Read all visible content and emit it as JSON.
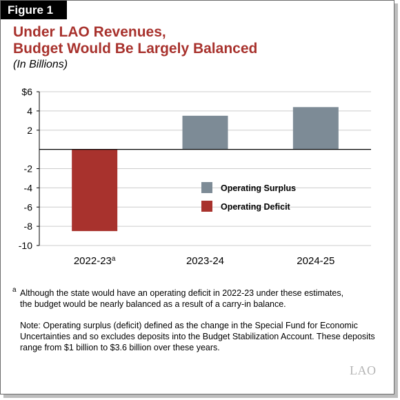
{
  "figure_label": "Figure 1",
  "title_lines": [
    "Under LAO Revenues,",
    "Budget Would Be Largely Balanced"
  ],
  "subtitle": "(In Billions)",
  "footnote": {
    "marker": "a",
    "lines": [
      "Although the state would have an operating deficit in 2022-23 under these estimates,",
      "the budget would be nearly balanced as a result of a carry-in balance."
    ]
  },
  "note_lines": [
    "Note: Operating surplus (deficit) defined as the change in the Special Fund for Economic",
    "Uncertainties and so excludes deposits into the Budget Stabilization Account. These deposits",
    "range from $1 billion to $3.6 billion over these years."
  ],
  "logo_text": "LAO",
  "colors": {
    "surplus": "#7d8b96",
    "deficit": "#a8322d",
    "title": "#a8322d",
    "grid": "#cccccc"
  },
  "chart_data": {
    "type": "bar",
    "categories": [
      "2022-23",
      "2023-24",
      "2024-25"
    ],
    "category_superscripts": [
      "a",
      "",
      ""
    ],
    "values": [
      -8.5,
      3.5,
      4.4
    ],
    "series": [
      {
        "name": "Operating Surplus",
        "color": "#7d8b96"
      },
      {
        "name": "Operating Deficit",
        "color": "#a8322d"
      }
    ],
    "y_ticks": [
      6,
      4,
      2,
      -2,
      -4,
      -6,
      -8,
      -10
    ],
    "y_tick_labels": [
      "$6",
      "4",
      "2",
      "-2",
      "-4",
      "-6",
      "-8",
      "-10"
    ],
    "ylim": [
      -10,
      6
    ],
    "grid": true,
    "legend_position": "center-right"
  }
}
